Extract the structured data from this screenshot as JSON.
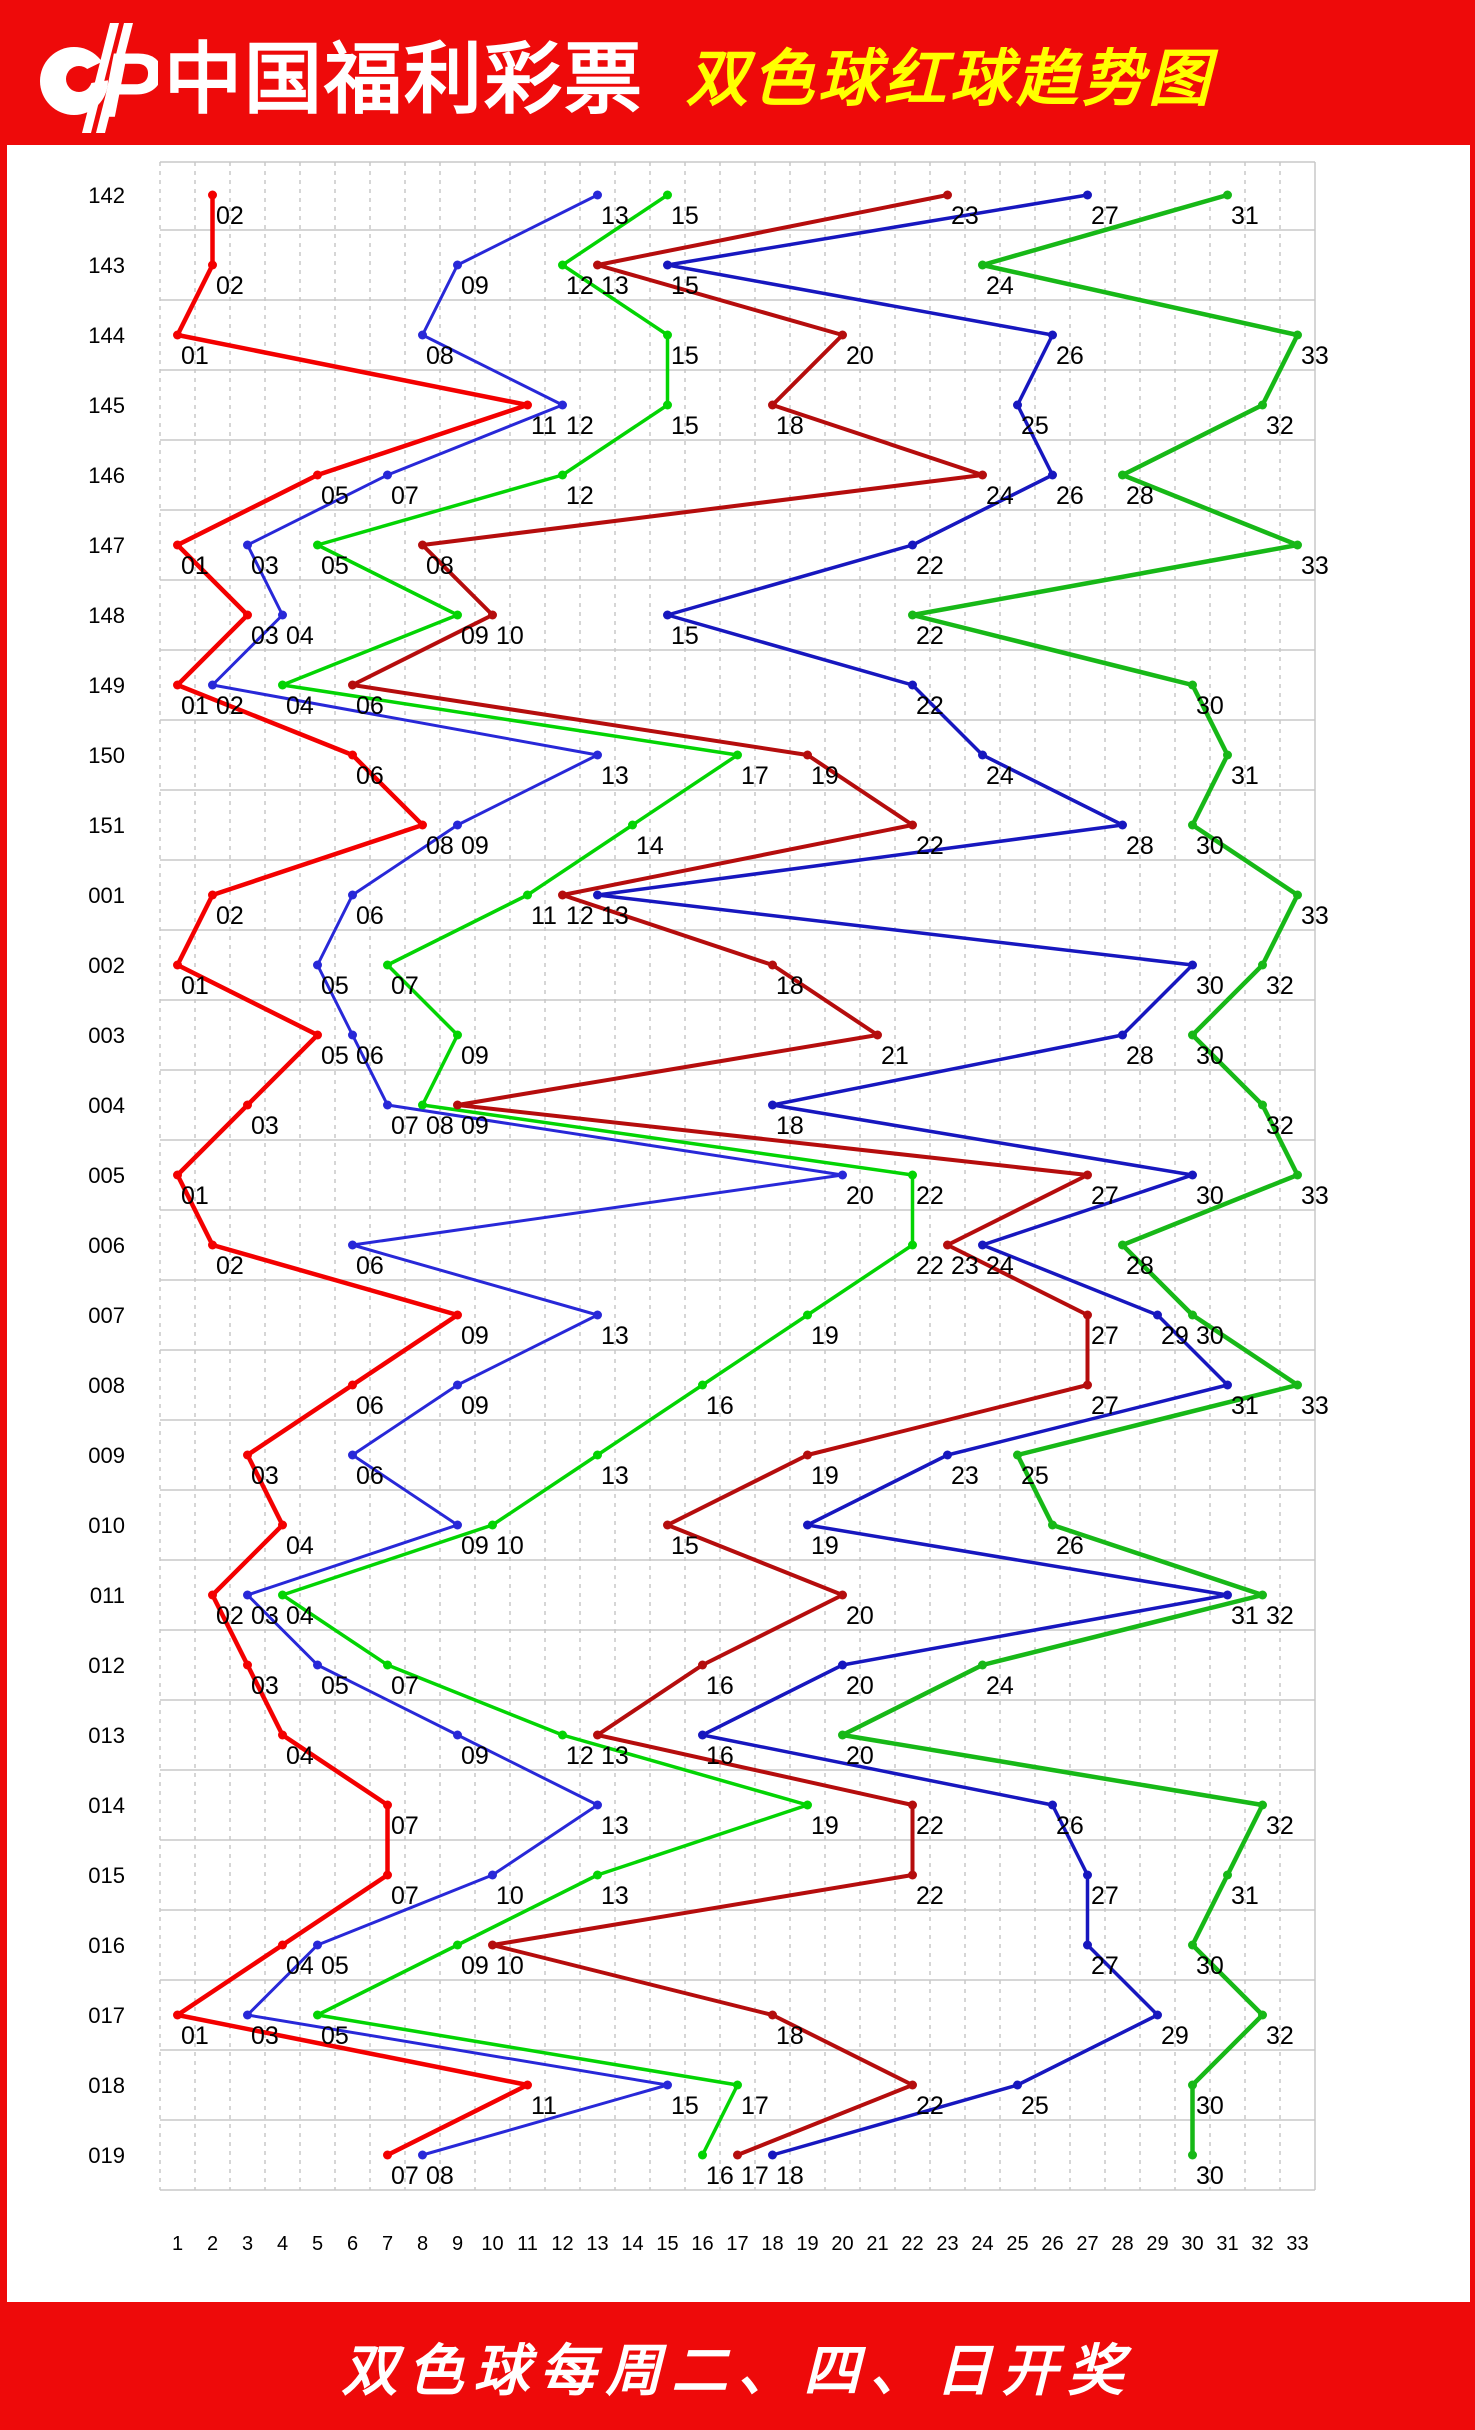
{
  "header": {
    "brand": "中国福利彩票",
    "title": "双色球红球趋势图",
    "logo": "china-welfare-lottery-cp-mark"
  },
  "footer": {
    "note": "双色球每周二、四、日开奖"
  },
  "colors": {
    "band_red": "#ee0a0a",
    "title_yellow": "#ffff00",
    "grid_gray": "#c8c8c8",
    "label_black": "#000000"
  },
  "chart_data": {
    "type": "line",
    "title": "双色球红球趋势图",
    "xlabel": "",
    "ylabel": "",
    "x_ticks": [
      1,
      2,
      3,
      4,
      5,
      6,
      7,
      8,
      9,
      10,
      11,
      12,
      13,
      14,
      15,
      16,
      17,
      18,
      19,
      20,
      21,
      22,
      23,
      24,
      25,
      26,
      27,
      28,
      29,
      30,
      31,
      32,
      33
    ],
    "xlim": [
      1,
      33
    ],
    "grid": "on",
    "legend": "none",
    "series_styles": [
      {
        "name": "ball-1",
        "color": "#f30000",
        "width": 4.5
      },
      {
        "name": "ball-2",
        "color": "#2828d8",
        "width": 3
      },
      {
        "name": "ball-3",
        "color": "#03d403",
        "width": 3.5
      },
      {
        "name": "ball-4",
        "color": "#b50d0d",
        "width": 4
      },
      {
        "name": "ball-5",
        "color": "#1717bf",
        "width": 3.5
      },
      {
        "name": "ball-6",
        "color": "#17b817",
        "width": 4.5
      }
    ],
    "periods": [
      {
        "period": "142",
        "balls": [
          "02",
          "13",
          "15",
          "23",
          "27",
          "31"
        ]
      },
      {
        "period": "143",
        "balls": [
          "02",
          "09",
          "12",
          "13",
          "15",
          "24"
        ]
      },
      {
        "period": "144",
        "balls": [
          "01",
          "08",
          "15",
          "20",
          "26",
          "33"
        ]
      },
      {
        "period": "145",
        "balls": [
          "11",
          "12",
          "15",
          "18",
          "25",
          "32"
        ]
      },
      {
        "period": "146",
        "balls": [
          "05",
          "07",
          "12",
          "24",
          "26",
          "28"
        ]
      },
      {
        "period": "147",
        "balls": [
          "01",
          "03",
          "05",
          "08",
          "22",
          "33"
        ]
      },
      {
        "period": "148",
        "balls": [
          "03",
          "04",
          "09",
          "10",
          "15",
          "22"
        ]
      },
      {
        "period": "149",
        "balls": [
          "01",
          "02",
          "04",
          "06",
          "22",
          "30"
        ]
      },
      {
        "period": "150",
        "balls": [
          "06",
          "13",
          "17",
          "19",
          "24",
          "31"
        ]
      },
      {
        "period": "151",
        "balls": [
          "08",
          "09",
          "14",
          "22",
          "28",
          "30"
        ]
      },
      {
        "period": "001",
        "balls": [
          "02",
          "06",
          "11",
          "12",
          "13",
          "33"
        ]
      },
      {
        "period": "002",
        "balls": [
          "01",
          "05",
          "07",
          "18",
          "30",
          "32"
        ]
      },
      {
        "period": "003",
        "balls": [
          "05",
          "06",
          "09",
          "21",
          "28",
          "30"
        ]
      },
      {
        "period": "004",
        "balls": [
          "03",
          "07",
          "08",
          "09",
          "18",
          "32"
        ]
      },
      {
        "period": "005",
        "balls": [
          "01",
          "20",
          "22",
          "27",
          "30",
          "33"
        ]
      },
      {
        "period": "006",
        "balls": [
          "02",
          "06",
          "22",
          "23",
          "24",
          "28"
        ]
      },
      {
        "period": "007",
        "balls": [
          "09",
          "13",
          "19",
          "27",
          "29",
          "30"
        ]
      },
      {
        "period": "008",
        "balls": [
          "06",
          "09",
          "16",
          "27",
          "31",
          "33"
        ]
      },
      {
        "period": "009",
        "balls": [
          "03",
          "06",
          "13",
          "19",
          "23",
          "25"
        ]
      },
      {
        "period": "010",
        "balls": [
          "04",
          "09",
          "10",
          "15",
          "19",
          "26"
        ]
      },
      {
        "period": "011",
        "balls": [
          "02",
          "03",
          "04",
          "20",
          "31",
          "32"
        ]
      },
      {
        "period": "012",
        "balls": [
          "03",
          "05",
          "07",
          "16",
          "20",
          "24"
        ]
      },
      {
        "period": "013",
        "balls": [
          "04",
          "09",
          "12",
          "13",
          "16",
          "20"
        ]
      },
      {
        "period": "014",
        "balls": [
          "07",
          "13",
          "19",
          "22",
          "26",
          "32"
        ]
      },
      {
        "period": "015",
        "balls": [
          "07",
          "10",
          "13",
          "22",
          "27",
          "31"
        ]
      },
      {
        "period": "016",
        "balls": [
          "04",
          "05",
          "09",
          "10",
          "27",
          "30"
        ]
      },
      {
        "period": "017",
        "balls": [
          "01",
          "03",
          "05",
          "18",
          "29",
          "32"
        ]
      },
      {
        "period": "018",
        "balls": [
          "11",
          "15",
          "17",
          "22",
          "25",
          "30"
        ]
      },
      {
        "period": "019",
        "balls": [
          "07",
          "08",
          "16",
          "17",
          "18",
          "30"
        ]
      }
    ]
  }
}
